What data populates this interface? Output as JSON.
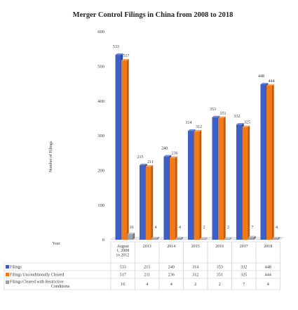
{
  "chart_data": {
    "type": "bar",
    "title": "Merger Control Filings in China from 2008 to 2018",
    "ylabel": "Number of Filings",
    "xlabel": "Year",
    "ylim": [
      0,
      600
    ],
    "yticks": [
      0,
      100,
      200,
      300,
      400,
      500,
      600
    ],
    "categories": [
      "August 1, 2008 to 2012",
      "2013",
      "2014",
      "2015",
      "2016",
      "2017",
      "2018"
    ],
    "category_lines": [
      [
        "August",
        "1, 2008",
        "to 2012"
      ],
      [
        "2013"
      ],
      [
        "2014"
      ],
      [
        "2015"
      ],
      [
        "2016"
      ],
      [
        "2017"
      ],
      [
        "2018"
      ]
    ],
    "series": [
      {
        "name": "Filings",
        "values": [
          533,
          215,
          240,
          314,
          353,
          332,
          448
        ],
        "color": "#3f62c8"
      },
      {
        "name": "Filings Unconditionally Cleared",
        "values": [
          517,
          211,
          236,
          312,
          351,
          325,
          444
        ],
        "color": "#f07a1a"
      },
      {
        "name": "Filings Cleared with Restrictive Conditions",
        "values": [
          16,
          4,
          4,
          2,
          2,
          7,
          4
        ],
        "color": "#9aa0a6"
      }
    ],
    "legend_position": "bottom-table",
    "grid": false
  }
}
